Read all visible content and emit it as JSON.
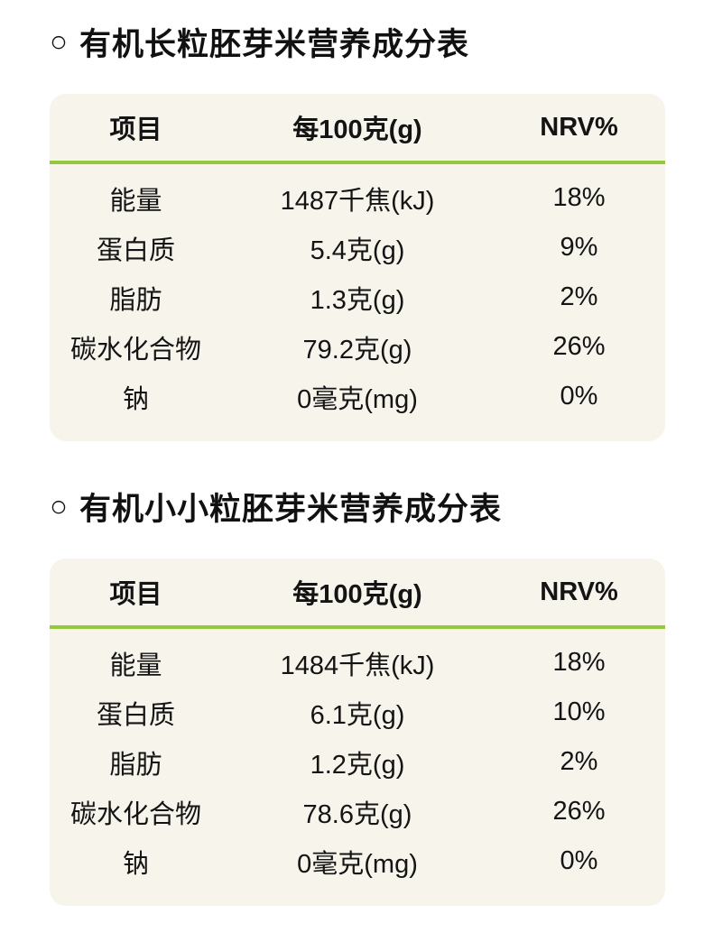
{
  "colors": {
    "page_background": "#ffffff",
    "card_background": "#f7f4ec",
    "divider_green": "#95c93d",
    "text": "#141414"
  },
  "tables": [
    {
      "bullet": "○",
      "title": "有机长粒胚芽米营养成分表",
      "columns": [
        "项目",
        "每100克(g)",
        "NRV%"
      ],
      "rows": [
        {
          "item": "能量",
          "per100g": "1487千焦(kJ)",
          "nrv": "18%"
        },
        {
          "item": "蛋白质",
          "per100g": "5.4克(g)",
          "nrv": "9%"
        },
        {
          "item": "脂肪",
          "per100g": "1.3克(g)",
          "nrv": "2%"
        },
        {
          "item": "碳水化合物",
          "per100g": "79.2克(g)",
          "nrv": "26%"
        },
        {
          "item": "钠",
          "per100g": "0毫克(mg)",
          "nrv": "0%"
        }
      ]
    },
    {
      "bullet": "○",
      "title": "有机小小粒胚芽米营养成分表",
      "columns": [
        "项目",
        "每100克(g)",
        "NRV%"
      ],
      "rows": [
        {
          "item": "能量",
          "per100g": "1484千焦(kJ)",
          "nrv": "18%"
        },
        {
          "item": "蛋白质",
          "per100g": "6.1克(g)",
          "nrv": "10%"
        },
        {
          "item": "脂肪",
          "per100g": "1.2克(g)",
          "nrv": "2%"
        },
        {
          "item": "碳水化合物",
          "per100g": "78.6克(g)",
          "nrv": "26%"
        },
        {
          "item": "钠",
          "per100g": "0毫克(mg)",
          "nrv": "0%"
        }
      ]
    }
  ]
}
